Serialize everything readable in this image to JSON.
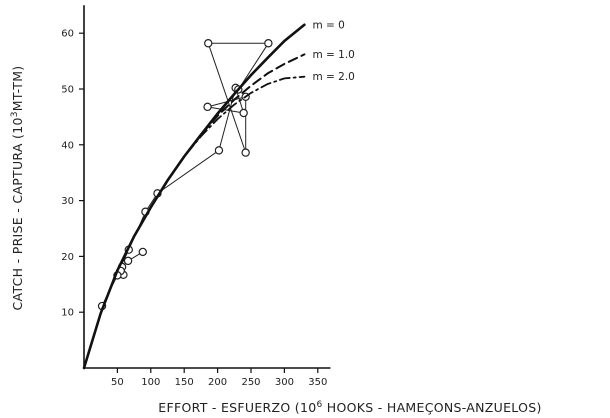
{
  "chart_data": {
    "type": "line",
    "title": "",
    "xlabel": {
      "pre": "EFFORT - ESFUERZO (10",
      "sup": "6",
      "post": " HOOKS - HAMEÇONS-ANZUELOS)"
    },
    "ylabel": {
      "pre": "CATCH - PRISE - CAPTURA (10",
      "sup": "3",
      "post": "MT-TM)"
    },
    "xlim": [
      0,
      360
    ],
    "ylim": [
      0,
      65
    ],
    "xticks": [
      50,
      100,
      150,
      200,
      250,
      300,
      350
    ],
    "yticks": [
      10,
      20,
      30,
      40,
      50,
      60
    ],
    "grid": false,
    "series": [
      {
        "name": "m = 0",
        "style": "solid",
        "points": [
          [
            0,
            0
          ],
          [
            25,
            9.8
          ],
          [
            50,
            17.5
          ],
          [
            75,
            23.6
          ],
          [
            100,
            28.8
          ],
          [
            125,
            33.6
          ],
          [
            150,
            37.9
          ],
          [
            175,
            41.8
          ],
          [
            200,
            45.6
          ],
          [
            225,
            49.1
          ],
          [
            250,
            52.5
          ],
          [
            275,
            55.6
          ],
          [
            300,
            58.6
          ],
          [
            330,
            61.5
          ]
        ]
      },
      {
        "name": "m = 1.0",
        "style": "dashed",
        "points": [
          [
            0,
            0
          ],
          [
            25,
            9.8
          ],
          [
            50,
            17.5
          ],
          [
            75,
            23.6
          ],
          [
            100,
            28.8
          ],
          [
            125,
            33.6
          ],
          [
            150,
            37.9
          ],
          [
            175,
            41.8
          ],
          [
            200,
            45.2
          ],
          [
            225,
            48.1
          ],
          [
            250,
            50.6
          ],
          [
            275,
            52.8
          ],
          [
            300,
            54.5
          ],
          [
            330,
            56.2
          ]
        ]
      },
      {
        "name": "m = 2.0",
        "style": "dash-dot",
        "points": [
          [
            0,
            0
          ],
          [
            25,
            9.8
          ],
          [
            50,
            17.5
          ],
          [
            75,
            23.6
          ],
          [
            100,
            28.8
          ],
          [
            125,
            33.6
          ],
          [
            150,
            37.9
          ],
          [
            175,
            41.5
          ],
          [
            200,
            44.6
          ],
          [
            225,
            47.2
          ],
          [
            250,
            49.3
          ],
          [
            275,
            50.9
          ],
          [
            300,
            51.9
          ],
          [
            330,
            52.2
          ]
        ]
      }
    ],
    "observed": [
      [
        88,
        20.8
      ],
      [
        66,
        19.2
      ],
      [
        57,
        18.1
      ],
      [
        59,
        16.7
      ],
      [
        55,
        17.4
      ],
      [
        50,
        16.6
      ],
      [
        27,
        11.1
      ],
      [
        67,
        21.2
      ],
      [
        92,
        28.0
      ],
      [
        110,
        31.3
      ],
      [
        202,
        39.0
      ],
      [
        227,
        50.2
      ],
      [
        239,
        45.7
      ],
      [
        185,
        46.8
      ],
      [
        242,
        48.6
      ],
      [
        242,
        38.6
      ],
      [
        186,
        58.2
      ],
      [
        276,
        58.2
      ],
      [
        231,
        49.9
      ]
    ]
  }
}
